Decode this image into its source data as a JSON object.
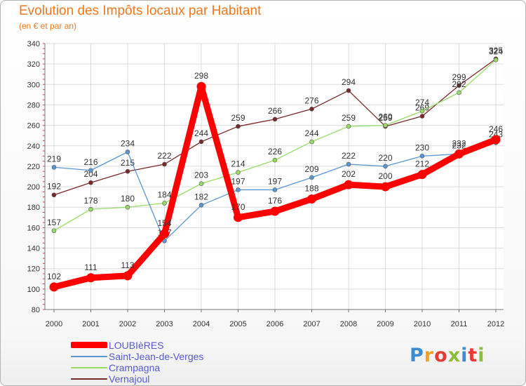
{
  "page": {
    "title": "Evolution des Impôts locaux par Habitant",
    "subtitle": "(en € et par an)",
    "logo": "Proxiti"
  },
  "chart_data": {
    "type": "line",
    "title": "Evolution des Impôts locaux par Habitant",
    "subtitle": "(en € et par an)",
    "xlabel": "",
    "ylabel": "",
    "categories": [
      "2000",
      "2001",
      "2002",
      "2003",
      "2004",
      "2005",
      "2006",
      "2007",
      "2008",
      "2009",
      "2010",
      "2011",
      "2012"
    ],
    "ylim": [
      80,
      340
    ],
    "yticks": [
      80,
      100,
      120,
      140,
      160,
      180,
      200,
      220,
      240,
      260,
      280,
      300,
      320,
      340
    ],
    "grid": true,
    "legend_position": "bottom-left",
    "series": [
      {
        "name": "Vernajoul",
        "color": "#782828",
        "values": [
          192,
          204,
          215,
          222,
          244,
          259,
          266,
          276,
          294,
          259,
          269,
          299,
          325
        ],
        "labels": [
          "192",
          "204",
          "215",
          "222",
          "244",
          "259",
          "266",
          "276",
          "294",
          "259",
          "269",
          "299",
          "325"
        ]
      },
      {
        "name": "Crampagna",
        "color": "#96dc64",
        "values": [
          157,
          178,
          180,
          184,
          203,
          214,
          226,
          244,
          259,
          260,
          274,
          292,
          324
        ],
        "labels": [
          "157",
          "178",
          "180",
          "184",
          "203",
          "214",
          "226",
          "244",
          "259",
          "260",
          "274",
          "292",
          "324"
        ]
      },
      {
        "name": "Saint-Jean-de-Verges",
        "color": "#5a96d2",
        "values": [
          219,
          216,
          234,
          147,
          182,
          197,
          197,
          209,
          222,
          220,
          230,
          232,
          243
        ],
        "labels": [
          "219",
          "216",
          "234",
          "147",
          "182",
          "197",
          "197",
          "209",
          "222",
          "220",
          "230",
          "232",
          "243"
        ]
      },
      {
        "name": "LOUBIèRES",
        "color": "#ff0000",
        "values": [
          102,
          111,
          113,
          154,
          298,
          170,
          176,
          188,
          202,
          200,
          212,
          232,
          246
        ],
        "labels": [
          "102",
          "111",
          "113",
          "154",
          "298",
          "170",
          "176",
          "188",
          "202",
          "200",
          "212",
          "232",
          "246"
        ]
      }
    ],
    "legend": [
      {
        "name": "LOUBIèRES",
        "color": "#ff0000"
      },
      {
        "name": "Saint-Jean-de-Verges",
        "color": "#5a96d2"
      },
      {
        "name": "Crampagna",
        "color": "#96dc64"
      },
      {
        "name": "Vernajoul",
        "color": "#782828"
      }
    ]
  }
}
